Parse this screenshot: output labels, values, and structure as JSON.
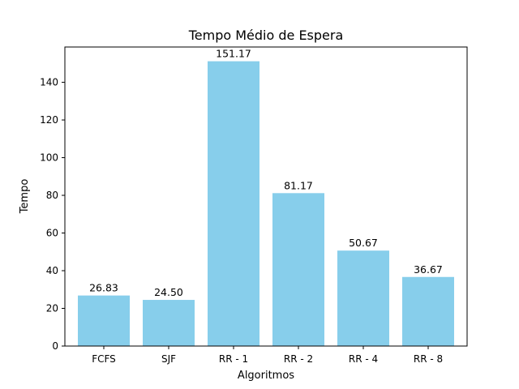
{
  "chart_data": {
    "type": "bar",
    "title": "Tempo Médio de Espera",
    "xlabel": "Algoritmos",
    "ylabel": "Tempo",
    "categories": [
      "FCFS",
      "SJF",
      "RR - 1",
      "RR - 2",
      "RR - 4",
      "RR - 8"
    ],
    "values": [
      26.83,
      24.5,
      151.17,
      81.17,
      50.67,
      36.67
    ],
    "data_labels": [
      "26.83",
      "24.50",
      "151.17",
      "81.17",
      "50.67",
      "36.67"
    ],
    "ylim": [
      0,
      158.73
    ],
    "yticks": [
      0,
      20,
      40,
      60,
      80,
      100,
      120,
      140
    ],
    "grid": false,
    "bar_color": "#87ceeb"
  }
}
